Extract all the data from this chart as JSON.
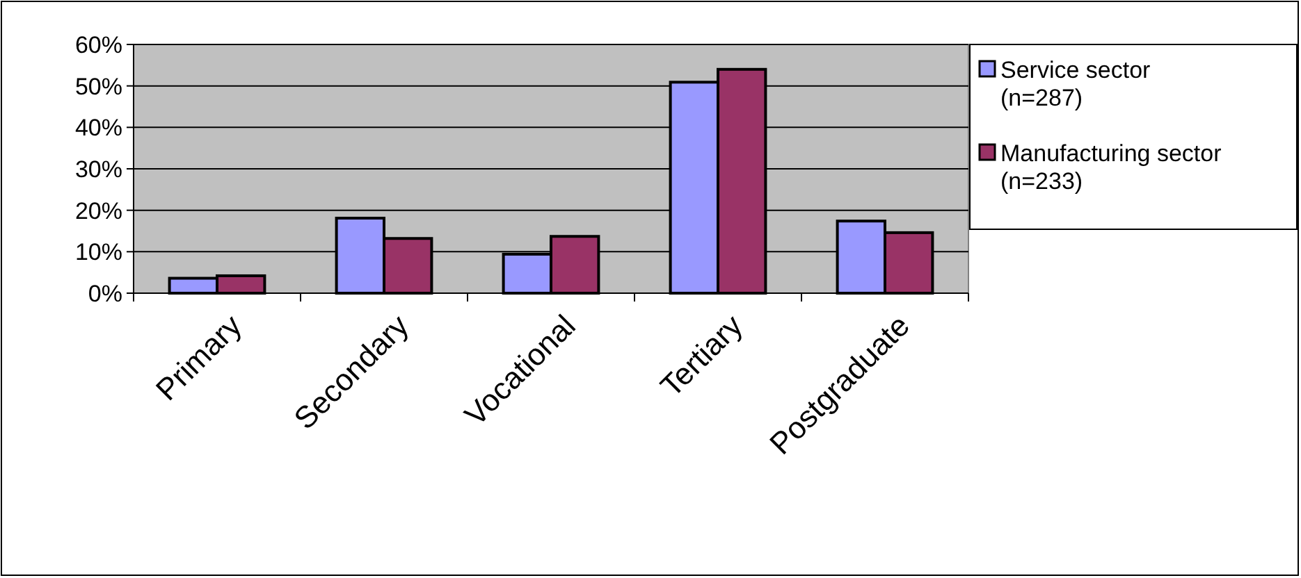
{
  "chart_data": {
    "type": "bar",
    "categories": [
      "Primary",
      "Secondary",
      "Vocational",
      "Tertiary",
      "Postgraduate"
    ],
    "series": [
      {
        "name": "Service sector (n=287)",
        "color": "#9999ff",
        "values": [
          3.6,
          18.1,
          9.4,
          50.9,
          17.4
        ]
      },
      {
        "name": "Manufacturing sector (n=233)",
        "color": "#993366",
        "values": [
          4.2,
          13.2,
          13.7,
          54.0,
          14.6
        ]
      }
    ],
    "ylim": [
      0,
      60
    ],
    "yticks": [
      {
        "value": 0,
        "label": "0%"
      },
      {
        "value": 10,
        "label": "10%"
      },
      {
        "value": 20,
        "label": "20%"
      },
      {
        "value": 30,
        "label": "30%"
      },
      {
        "value": 40,
        "label": "40%"
      },
      {
        "value": 50,
        "label": "50%"
      },
      {
        "value": 60,
        "label": "60%"
      }
    ],
    "grid": "y",
    "legend": "right"
  }
}
